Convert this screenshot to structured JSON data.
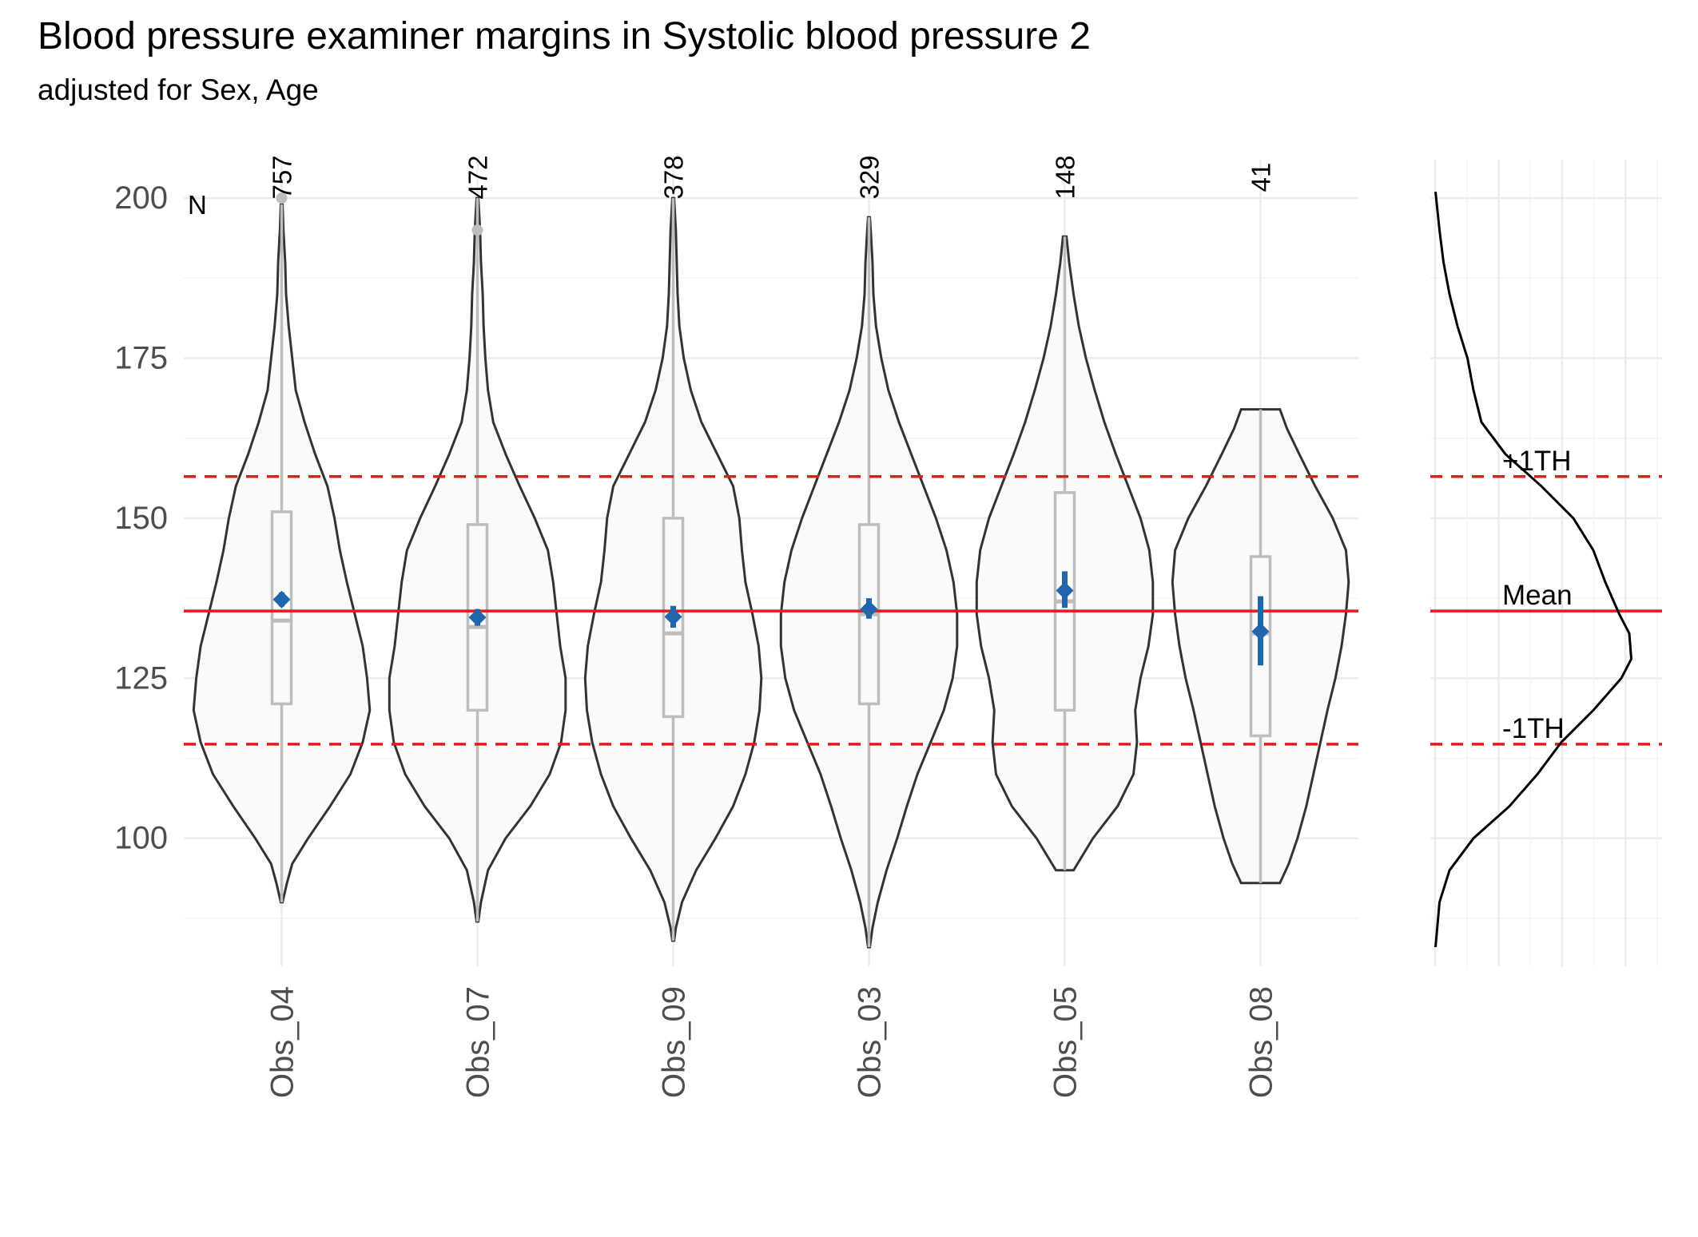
{
  "chart_data": {
    "type": "violin",
    "title": "Blood pressure examiner margins in Systolic blood pressure 2",
    "subtitle": "adjusted for Sex, Age",
    "n_header": "N",
    "ylim": [
      80,
      206
    ],
    "y_ticks": [
      100,
      125,
      150,
      175,
      200
    ],
    "categories": [
      "Obs_04",
      "Obs_07",
      "Obs_09",
      "Obs_03",
      "Obs_05",
      "Obs_08"
    ],
    "n": [
      "757",
      "472",
      "378",
      "329",
      "148",
      "41"
    ],
    "groups": [
      {
        "label": "Obs_04",
        "n": 757,
        "min": 90,
        "max": 199,
        "q1": 121,
        "median": 134,
        "q3": 151,
        "outliers": [
          200
        ],
        "estimate": 137.3,
        "ci": [
          136.2,
          138.4
        ],
        "violin": [
          [
            90,
            0.01
          ],
          [
            93,
            0.06
          ],
          [
            96,
            0.12
          ],
          [
            100,
            0.3
          ],
          [
            105,
            0.55
          ],
          [
            110,
            0.78
          ],
          [
            115,
            0.92
          ],
          [
            120,
            1.0
          ],
          [
            125,
            0.97
          ],
          [
            130,
            0.92
          ],
          [
            135,
            0.83
          ],
          [
            140,
            0.74
          ],
          [
            145,
            0.66
          ],
          [
            150,
            0.6
          ],
          [
            155,
            0.52
          ],
          [
            160,
            0.38
          ],
          [
            165,
            0.26
          ],
          [
            170,
            0.16
          ],
          [
            175,
            0.12
          ],
          [
            180,
            0.08
          ],
          [
            185,
            0.05
          ],
          [
            190,
            0.04
          ],
          [
            195,
            0.02
          ],
          [
            199,
            0.01
          ]
        ]
      },
      {
        "label": "Obs_07",
        "n": 472,
        "min": 87,
        "max": 200,
        "q1": 120,
        "median": 133,
        "q3": 149,
        "outliers": [
          195
        ],
        "estimate": 134.5,
        "ci": [
          133.2,
          135.8
        ],
        "violin": [
          [
            87,
            0.01
          ],
          [
            90,
            0.04
          ],
          [
            95,
            0.12
          ],
          [
            100,
            0.32
          ],
          [
            105,
            0.6
          ],
          [
            110,
            0.82
          ],
          [
            115,
            0.95
          ],
          [
            120,
            1.0
          ],
          [
            125,
            1.0
          ],
          [
            130,
            0.94
          ],
          [
            135,
            0.9
          ],
          [
            140,
            0.86
          ],
          [
            145,
            0.8
          ],
          [
            150,
            0.65
          ],
          [
            155,
            0.48
          ],
          [
            160,
            0.32
          ],
          [
            165,
            0.18
          ],
          [
            170,
            0.12
          ],
          [
            175,
            0.09
          ],
          [
            180,
            0.07
          ],
          [
            185,
            0.06
          ],
          [
            190,
            0.04
          ],
          [
            195,
            0.03
          ],
          [
            200,
            0.01
          ]
        ]
      },
      {
        "label": "Obs_09",
        "n": 378,
        "min": 84,
        "max": 200,
        "q1": 119,
        "median": 132,
        "q3": 150,
        "outliers": [],
        "estimate": 134.6,
        "ci": [
          132.9,
          136.3
        ],
        "violin": [
          [
            84,
            0.01
          ],
          [
            86,
            0.03
          ],
          [
            90,
            0.1
          ],
          [
            95,
            0.26
          ],
          [
            100,
            0.48
          ],
          [
            105,
            0.68
          ],
          [
            110,
            0.82
          ],
          [
            115,
            0.92
          ],
          [
            120,
            0.98
          ],
          [
            125,
            1.0
          ],
          [
            130,
            0.97
          ],
          [
            135,
            0.9
          ],
          [
            140,
            0.82
          ],
          [
            145,
            0.78
          ],
          [
            150,
            0.75
          ],
          [
            155,
            0.68
          ],
          [
            160,
            0.5
          ],
          [
            165,
            0.32
          ],
          [
            170,
            0.2
          ],
          [
            175,
            0.12
          ],
          [
            180,
            0.07
          ],
          [
            185,
            0.05
          ],
          [
            190,
            0.04
          ],
          [
            195,
            0.03
          ],
          [
            200,
            0.01
          ]
        ]
      },
      {
        "label": "Obs_03",
        "n": 329,
        "min": 83,
        "max": 197,
        "q1": 121,
        "median": 135,
        "q3": 149,
        "outliers": [],
        "estimate": 135.8,
        "ci": [
          134.3,
          137.5
        ],
        "violin": [
          [
            83,
            0.01
          ],
          [
            86,
            0.04
          ],
          [
            90,
            0.1
          ],
          [
            95,
            0.2
          ],
          [
            100,
            0.32
          ],
          [
            105,
            0.43
          ],
          [
            110,
            0.55
          ],
          [
            115,
            0.7
          ],
          [
            120,
            0.85
          ],
          [
            125,
            0.95
          ],
          [
            130,
            1.0
          ],
          [
            135,
            1.0
          ],
          [
            140,
            0.96
          ],
          [
            145,
            0.88
          ],
          [
            150,
            0.76
          ],
          [
            155,
            0.62
          ],
          [
            160,
            0.48
          ],
          [
            165,
            0.34
          ],
          [
            170,
            0.22
          ],
          [
            175,
            0.14
          ],
          [
            180,
            0.08
          ],
          [
            185,
            0.05
          ],
          [
            190,
            0.04
          ],
          [
            195,
            0.02
          ],
          [
            197,
            0.01
          ]
        ]
      },
      {
        "label": "Obs_05",
        "n": 148,
        "min": 95,
        "max": 194,
        "q1": 120,
        "median": 137,
        "q3": 154,
        "outliers": [],
        "estimate": 138.7,
        "ci": [
          136.0,
          141.7
        ],
        "violin": [
          [
            95,
            0.1
          ],
          [
            100,
            0.32
          ],
          [
            105,
            0.6
          ],
          [
            110,
            0.78
          ],
          [
            115,
            0.82
          ],
          [
            120,
            0.8
          ],
          [
            125,
            0.86
          ],
          [
            130,
            0.95
          ],
          [
            135,
            1.0
          ],
          [
            140,
            1.0
          ],
          [
            145,
            0.96
          ],
          [
            150,
            0.86
          ],
          [
            155,
            0.72
          ],
          [
            160,
            0.58
          ],
          [
            165,
            0.45
          ],
          [
            170,
            0.34
          ],
          [
            175,
            0.24
          ],
          [
            180,
            0.16
          ],
          [
            185,
            0.1
          ],
          [
            190,
            0.05
          ],
          [
            194,
            0.02
          ]
        ]
      },
      {
        "label": "Obs_08",
        "n": 41,
        "min": 93,
        "max": 167,
        "q1": 116,
        "median": 132,
        "q3": 144,
        "outliers": [],
        "estimate": 132.3,
        "ci": [
          127.0,
          137.8
        ],
        "violin": [
          [
            93,
            0.22
          ],
          [
            96,
            0.32
          ],
          [
            100,
            0.42
          ],
          [
            105,
            0.52
          ],
          [
            110,
            0.6
          ],
          [
            115,
            0.68
          ],
          [
            120,
            0.76
          ],
          [
            125,
            0.85
          ],
          [
            130,
            0.92
          ],
          [
            135,
            0.97
          ],
          [
            140,
            1.0
          ],
          [
            145,
            0.97
          ],
          [
            150,
            0.82
          ],
          [
            155,
            0.62
          ],
          [
            160,
            0.44
          ],
          [
            164,
            0.3
          ],
          [
            167,
            0.22
          ]
        ]
      }
    ],
    "reference_lines": [
      {
        "label": "+1TH",
        "value": 156.5,
        "style": "dashed",
        "color": "#e41a1c"
      },
      {
        "label": "Mean",
        "value": 135.5,
        "style": "solid",
        "color": "#e41a1c"
      },
      {
        "label": "-1TH",
        "value": 114.7,
        "style": "dashed",
        "color": "#e41a1c"
      }
    ],
    "density_panel": {
      "y": [
        83,
        90,
        95,
        100,
        105,
        110,
        115,
        120,
        125,
        128,
        132,
        135,
        140,
        145,
        150,
        155,
        160,
        165,
        170,
        175,
        180,
        185,
        190,
        195,
        201
      ],
      "density": [
        0.01,
        0.03,
        0.08,
        0.2,
        0.38,
        0.52,
        0.64,
        0.8,
        0.94,
        0.99,
        0.98,
        0.93,
        0.86,
        0.8,
        0.7,
        0.54,
        0.36,
        0.24,
        0.2,
        0.17,
        0.12,
        0.08,
        0.05,
        0.03,
        0.01
      ]
    },
    "colors": {
      "estimate": "#2166ac",
      "reference": "#e41a1c",
      "violin_fill": "#fafafa",
      "violin_outline": "#333333",
      "box": "#bdbdbd",
      "density": "#000000"
    },
    "grid": true,
    "legend": "none"
  }
}
